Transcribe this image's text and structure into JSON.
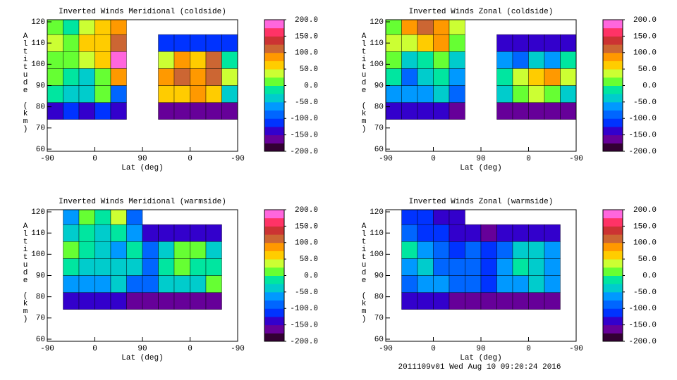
{
  "chart_data": [
    {
      "type": "heatmap",
      "title": "Inverted Winds Meridional (coldside)",
      "xlabel": "Lat (deg)",
      "ylabel": "Altitude (km)",
      "xlim": [
        0,
        360
      ],
      "xticks": [
        {
          "value": 0,
          "label": "-90"
        },
        {
          "value": 90,
          "label": "0"
        },
        {
          "value": 180,
          "label": "90"
        },
        {
          "value": 270,
          "label": "0"
        },
        {
          "value": 360,
          "label": "-90"
        }
      ],
      "ylim": [
        59,
        121
      ],
      "yticks": [
        60,
        70,
        80,
        90,
        100,
        110,
        120
      ],
      "zlim": [
        -200,
        200
      ],
      "zticks": [
        {
          "value": 200,
          "label": "200.0"
        },
        {
          "value": 150,
          "label": "150.0"
        },
        {
          "value": 100,
          "label": "100.0"
        },
        {
          "value": 50,
          "label": "50.0"
        },
        {
          "value": 0,
          "label": "0.0"
        },
        {
          "value": -50,
          "label": "-50.0"
        },
        {
          "value": -100,
          "label": "-100.0"
        },
        {
          "value": -150,
          "label": "-150.0"
        },
        {
          "value": -200,
          "label": "-200.0"
        }
      ],
      "x": [
        15,
        45,
        75,
        105,
        135,
        165,
        195,
        225,
        255,
        285,
        315,
        345
      ],
      "y": [
        78,
        86,
        94,
        102,
        110,
        118
      ],
      "z": [
        [
          -150,
          -120,
          -130,
          -120,
          -150,
          null,
          null,
          -170,
          -170,
          -170,
          -170,
          -170
        ],
        [
          -20,
          -30,
          -40,
          20,
          -80,
          null,
          null,
          60,
          70,
          90,
          60,
          -40
        ],
        [
          0,
          -10,
          -30,
          20,
          80,
          null,
          null,
          80,
          110,
          90,
          100,
          30
        ],
        [
          20,
          0,
          30,
          60,
          180,
          null,
          null,
          40,
          80,
          60,
          100,
          -20
        ],
        [
          40,
          20,
          50,
          70,
          100,
          null,
          null,
          -120,
          -120,
          -120,
          -120,
          -120
        ],
        [
          0,
          -20,
          30,
          60,
          80,
          null,
          null,
          null,
          null,
          null,
          null,
          null
        ]
      ]
    },
    {
      "type": "heatmap",
      "title": "Inverted Winds Zonal (coldside)",
      "xlabel": "Lat (deg)",
      "ylabel": "Altitude (km)",
      "xlim": [
        0,
        360
      ],
      "xticks": [
        {
          "value": 0,
          "label": "-90"
        },
        {
          "value": 90,
          "label": "0"
        },
        {
          "value": 180,
          "label": "90"
        },
        {
          "value": 270,
          "label": "0"
        },
        {
          "value": 360,
          "label": "-90"
        }
      ],
      "ylim": [
        59,
        121
      ],
      "yticks": [
        60,
        70,
        80,
        90,
        100,
        110,
        120
      ],
      "zlim": [
        -200,
        200
      ],
      "zticks": [
        {
          "value": 200,
          "label": "200.0"
        },
        {
          "value": 150,
          "label": "150.0"
        },
        {
          "value": 100,
          "label": "100.0"
        },
        {
          "value": 50,
          "label": "50.0"
        },
        {
          "value": 0,
          "label": "0.0"
        },
        {
          "value": -50,
          "label": "-50.0"
        },
        {
          "value": -100,
          "label": "-100.0"
        },
        {
          "value": -150,
          "label": "-150.0"
        },
        {
          "value": -200,
          "label": "-200.0"
        }
      ],
      "x": [
        15,
        45,
        75,
        105,
        135,
        165,
        195,
        225,
        255,
        285,
        315,
        345
      ],
      "y": [
        78,
        86,
        94,
        102,
        110,
        118
      ],
      "z": [
        [
          -150,
          -130,
          -140,
          -150,
          -170,
          null,
          null,
          -170,
          -170,
          -170,
          -170,
          -170
        ],
        [
          -60,
          -70,
          -60,
          -40,
          -100,
          null,
          null,
          -40,
          20,
          40,
          10,
          -40
        ],
        [
          -20,
          -80,
          -50,
          -20,
          -60,
          null,
          null,
          -20,
          40,
          60,
          80,
          40
        ],
        [
          0,
          -30,
          -20,
          20,
          -40,
          null,
          null,
          -60,
          -80,
          -30,
          -60,
          -20
        ],
        [
          40,
          30,
          60,
          80,
          20,
          null,
          null,
          -140,
          -140,
          -140,
          -140,
          -140
        ],
        [
          20,
          80,
          100,
          90,
          40,
          null,
          null,
          null,
          null,
          null,
          null,
          null
        ]
      ]
    },
    {
      "type": "heatmap",
      "title": "Inverted Winds Meridional (warmside)",
      "xlabel": "Lat (deg)",
      "ylabel": "Altitude (km)",
      "xlim": [
        0,
        360
      ],
      "xticks": [
        {
          "value": 0,
          "label": "-90"
        },
        {
          "value": 90,
          "label": "0"
        },
        {
          "value": 180,
          "label": "90"
        },
        {
          "value": 270,
          "label": "0"
        },
        {
          "value": 360,
          "label": "-90"
        }
      ],
      "ylim": [
        59,
        121
      ],
      "yticks": [
        60,
        70,
        80,
        90,
        100,
        110,
        120
      ],
      "zlim": [
        -200,
        200
      ],
      "zticks": [
        {
          "value": 200,
          "label": "200.0"
        },
        {
          "value": 150,
          "label": "150.0"
        },
        {
          "value": 100,
          "label": "100.0"
        },
        {
          "value": 50,
          "label": "50.0"
        },
        {
          "value": 0,
          "label": "0.0"
        },
        {
          "value": -50,
          "label": "-50.0"
        },
        {
          "value": -100,
          "label": "-100.0"
        },
        {
          "value": -150,
          "label": "-150.0"
        },
        {
          "value": -200,
          "label": "-200.0"
        }
      ],
      "x": [
        15,
        45,
        75,
        105,
        135,
        165,
        195,
        225,
        255,
        285,
        315,
        345
      ],
      "y": [
        78,
        86,
        94,
        102,
        110,
        118
      ],
      "z": [
        [
          null,
          -150,
          -140,
          -140,
          -150,
          -160,
          -170,
          -160,
          -160,
          -160,
          -160,
          null
        ],
        [
          null,
          -60,
          -70,
          -60,
          -50,
          -80,
          -100,
          -50,
          -40,
          -30,
          20,
          null
        ],
        [
          null,
          -20,
          -40,
          -30,
          -50,
          -40,
          -80,
          -10,
          0,
          -20,
          -10,
          null
        ],
        [
          null,
          0,
          -20,
          -40,
          -60,
          -20,
          -90,
          -30,
          10,
          20,
          -40,
          null
        ],
        [
          null,
          -40,
          -10,
          -30,
          -20,
          -60,
          -140,
          -140,
          -140,
          -140,
          -140,
          null
        ],
        [
          null,
          -60,
          20,
          -20,
          40,
          -80,
          null,
          null,
          null,
          null,
          null,
          null
        ]
      ]
    },
    {
      "type": "heatmap",
      "title": "Inverted Winds Zonal (warmside)",
      "xlabel": "Lat (deg)",
      "ylabel": "Altitude (km)",
      "xlim": [
        0,
        360
      ],
      "xticks": [
        {
          "value": 0,
          "label": "-90"
        },
        {
          "value": 90,
          "label": "0"
        },
        {
          "value": 180,
          "label": "90"
        },
        {
          "value": 270,
          "label": "0"
        },
        {
          "value": 360,
          "label": "-90"
        }
      ],
      "ylim": [
        59,
        121
      ],
      "yticks": [
        60,
        70,
        80,
        90,
        100,
        110,
        120
      ],
      "zlim": [
        -200,
        200
      ],
      "zticks": [
        {
          "value": 200,
          "label": "200.0"
        },
        {
          "value": 150,
          "label": "150.0"
        },
        {
          "value": 100,
          "label": "100.0"
        },
        {
          "value": 50,
          "label": "50.0"
        },
        {
          "value": 0,
          "label": "0.0"
        },
        {
          "value": -50,
          "label": "-50.0"
        },
        {
          "value": -100,
          "label": "-100.0"
        },
        {
          "value": -150,
          "label": "-150.0"
        },
        {
          "value": -200,
          "label": "-200.0"
        }
      ],
      "x": [
        15,
        45,
        75,
        105,
        135,
        165,
        195,
        225,
        255,
        285,
        315,
        345
      ],
      "y": [
        78,
        86,
        94,
        102,
        110,
        118
      ],
      "z": [
        [
          null,
          -150,
          -150,
          -150,
          -160,
          -160,
          -170,
          -160,
          -160,
          -160,
          -160,
          null
        ],
        [
          null,
          -80,
          -70,
          -60,
          -90,
          -100,
          -120,
          -70,
          -60,
          -40,
          -60,
          null
        ],
        [
          null,
          -60,
          -50,
          -80,
          -100,
          -80,
          -120,
          -60,
          -20,
          -40,
          -60,
          null
        ],
        [
          null,
          -20,
          -70,
          -100,
          -120,
          -90,
          -120,
          -80,
          -50,
          -30,
          -60,
          null
        ],
        [
          null,
          -100,
          -110,
          -120,
          -140,
          -130,
          -160,
          -150,
          -150,
          -150,
          -150,
          null
        ],
        [
          null,
          -120,
          -110,
          -130,
          -150,
          null,
          null,
          null,
          null,
          null,
          null,
          null
        ]
      ]
    }
  ],
  "colors": [
    "#330033",
    "#660099",
    "#3300cc",
    "#0033ff",
    "#0066ff",
    "#0099ff",
    "#00cccc",
    "#00e6a0",
    "#66ff33",
    "#ccff33",
    "#ffcc00",
    "#ff9900",
    "#cc6633",
    "#cc3333",
    "#ff3366",
    "#ff66dd"
  ],
  "footer": "2011109v01 Wed Aug 10 09:20:24 2016"
}
